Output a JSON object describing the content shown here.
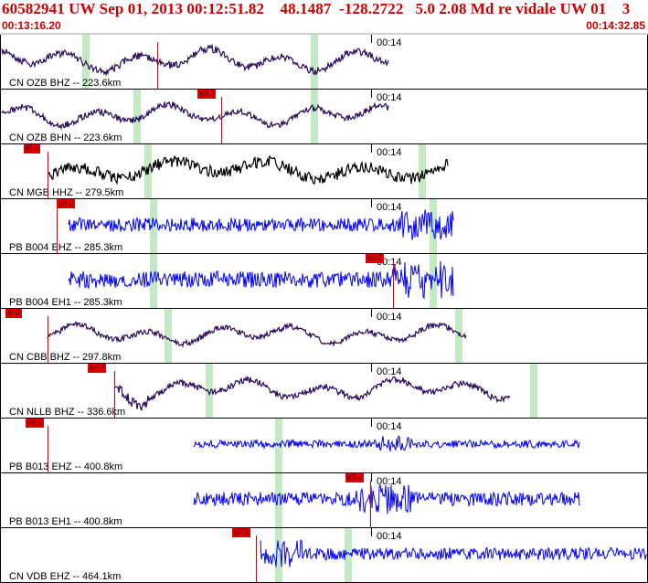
{
  "header": {
    "title": "60582941 UW Sep 01, 2013 00:12:51.82    48.1487  -128.2722   5.0 2.08 Md re vidale UW 01    3",
    "start_time": "00:13:16.20",
    "end_time": "00:14:32.85"
  },
  "colors": {
    "header_text": "#cc0000",
    "trace_short": "#2a0a5a",
    "trace_broadband": "#000000",
    "trace_strong": "#0000ff",
    "pick": "#e00000",
    "window": "#b8e6b8"
  },
  "panels": [
    {
      "station": "CN OZB BHZ -- 223.6km",
      "time_mark": "00:14",
      "pick_label": "",
      "color": "trace_short",
      "amplitude": 0.55
    },
    {
      "station": "CN OZB BHN -- 223.6km",
      "time_mark": "00:14",
      "pick_label": "eS 2",
      "color": "trace_short",
      "amplitude": 0.5
    },
    {
      "station": "CN MGB HHZ -- 279.5km",
      "time_mark": "00:14",
      "pick_label": "iP 0",
      "color": "trace_broadband",
      "amplitude": 0.55
    },
    {
      "station": "PB B004 EHZ -- 285.3km",
      "time_mark": "00:14",
      "pick_label": "eP 0",
      "color": "trace_strong",
      "amplitude": 0.45
    },
    {
      "station": "PB B004 EH1 -- 285.3km",
      "time_mark": "00:14",
      "pick_label": "eS 2",
      "color": "trace_strong",
      "amplitude": 0.55
    },
    {
      "station": "CN CBB BHZ -- 297.8km",
      "time_mark": "00:14",
      "pick_label": "iP 0",
      "color": "trace_short",
      "amplitude": 0.45
    },
    {
      "station": "CN NLLB BHZ -- 336.6km",
      "time_mark": "00:14",
      "pick_label": "eP 2",
      "color": "trace_short",
      "amplitude": 0.5
    },
    {
      "station": "PB B013 EHZ -- 400.8km",
      "time_mark": "00:14",
      "pick_label": "eP 2",
      "color": "trace_strong",
      "amplitude": 0.25
    },
    {
      "station": "PB B013 EH1 -- 400.8km",
      "time_mark": "00:14",
      "pick_label": "eS 2",
      "color": "trace_strong",
      "amplitude": 0.45
    },
    {
      "station": "CN VDB EHZ -- 464.1km",
      "time_mark": "00:14",
      "pick_label": "eP 2",
      "color": "trace_strong",
      "amplitude": 0.4
    }
  ]
}
